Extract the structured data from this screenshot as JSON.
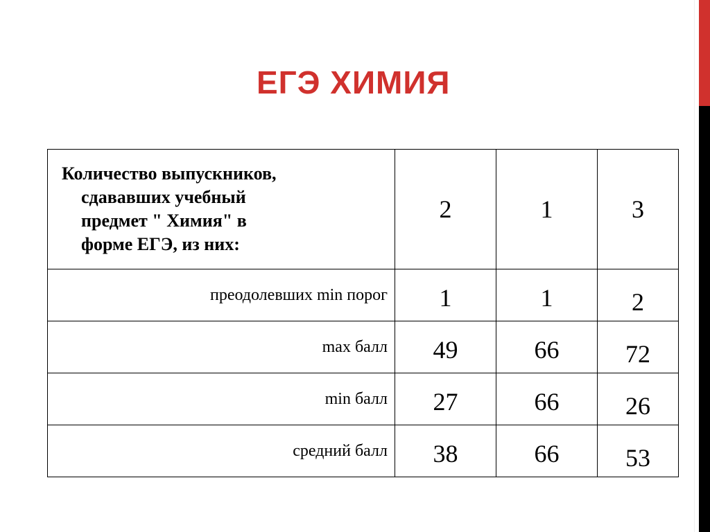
{
  "title": "ЕГЭ ХИМИЯ",
  "colors": {
    "accent": "#d0312d",
    "side_bar": "#000000"
  },
  "table": {
    "header_lines": [
      "Количество выпускников,",
      "сдававших учебный",
      "предмет \" Химия\" в",
      "форме ЕГЭ, из них:"
    ],
    "header_values": [
      "2",
      "1",
      "3"
    ],
    "rows": [
      {
        "label": "преодолевших min порог",
        "values": [
          "1",
          "1",
          "2"
        ]
      },
      {
        "label": "max  балл",
        "values": [
          "49",
          "66",
          "72"
        ]
      },
      {
        "label": "min  балл",
        "values": [
          "27",
          "66",
          "26"
        ]
      },
      {
        "label": "средний балл",
        "values": [
          "38",
          "66",
          "53"
        ]
      }
    ]
  }
}
